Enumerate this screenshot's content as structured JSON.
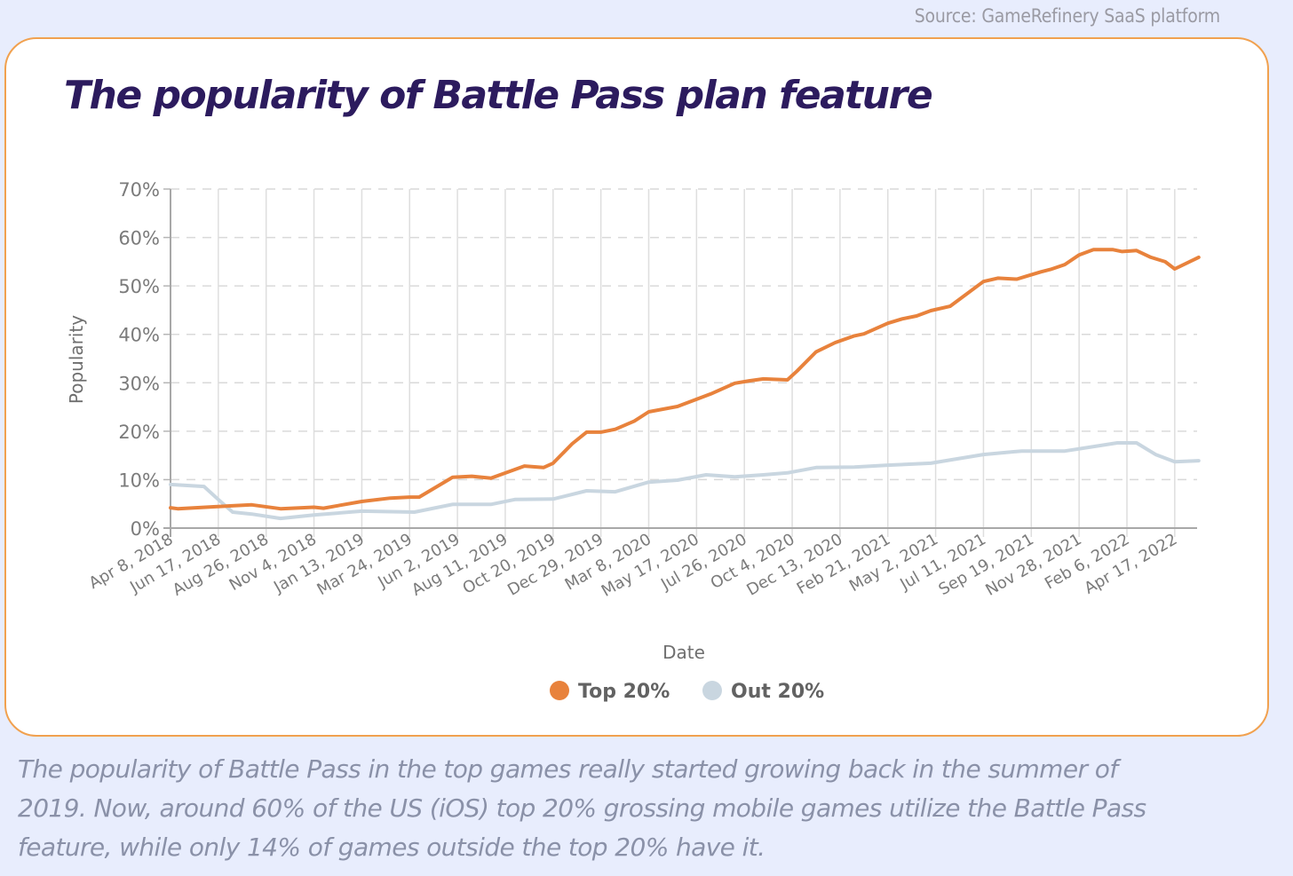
{
  "source": "Source: GameRefinery SaaS platform",
  "caption": "The popularity of Battle Pass in the top games really started growing back in the summer of 2019. Now, around 60% of the US (iOS) top 20% grossing mobile games utilize the Battle Pass feature, while only 14% of games outside the top 20% have it.",
  "chart_data": {
    "type": "line",
    "title": "The popularity of Battle Pass plan feature",
    "xlabel": "Date",
    "ylabel": "Popularity",
    "ylim": [
      0,
      70
    ],
    "yticks": [
      0,
      10,
      20,
      30,
      40,
      50,
      60,
      70
    ],
    "ytick_labels": [
      "0%",
      "10%",
      "20%",
      "30%",
      "40%",
      "50%",
      "60%",
      "70%"
    ],
    "x_unit": "weeks since Apr 8, 2018",
    "xlim": [
      0,
      215
    ],
    "xtick_weeks": [
      0,
      10,
      20,
      30,
      40,
      50,
      60,
      70,
      80,
      90,
      100,
      110,
      120,
      130,
      140,
      150,
      160,
      170,
      180,
      190,
      200,
      210
    ],
    "xtick_labels": [
      "Apr 8, 2018",
      "Jun 17, 2018",
      "Aug 26, 2018",
      "Nov 4, 2018",
      "Jan 13, 2019",
      "Mar 24, 2019",
      "Jun 2, 2019",
      "Aug 11, 2019",
      "Oct 20, 2019",
      "Dec 29, 2019",
      "Mar 8, 2020",
      "May 17, 2020",
      "Jul 26, 2020",
      "Oct 4, 2020",
      "Dec 13, 2020",
      "Feb 21, 2021",
      "May 2, 2021",
      "Jul 11, 2021",
      "Sep 19, 2021",
      "Nov 28, 2021",
      "Feb 6, 2022",
      "Apr 17, 2022"
    ],
    "grid": {
      "horizontal": "dashed",
      "vertical": "solid"
    },
    "legend_position": "bottom-center",
    "series": [
      {
        "name": "Top 20%",
        "color": "#e8823c",
        "x": [
          0,
          1.5,
          9,
          17,
          23,
          30,
          32,
          40,
          46,
          50,
          52,
          59,
          63,
          67,
          74,
          78,
          80,
          84,
          87,
          90,
          93,
          97,
          100,
          106,
          113,
          118,
          121,
          124,
          129,
          131,
          135,
          139,
          143,
          145,
          150,
          153,
          156,
          159,
          163,
          170,
          173,
          177,
          179,
          182,
          184,
          187,
          190,
          193,
          197,
          199,
          202,
          205,
          208,
          210,
          215
        ],
        "values": [
          4.2,
          4.0,
          4.4,
          4.8,
          4.0,
          4.3,
          4.1,
          5.5,
          6.2,
          6.4,
          6.4,
          10.5,
          10.7,
          10.3,
          12.8,
          12.5,
          13.4,
          17.4,
          19.8,
          19.8,
          20.4,
          22.1,
          24.0,
          25.1,
          27.7,
          29.9,
          30.4,
          30.8,
          30.6,
          32.4,
          36.4,
          38.3,
          39.7,
          40.1,
          42.3,
          43.2,
          43.8,
          44.9,
          45.8,
          50.9,
          51.6,
          51.4,
          52.0,
          52.9,
          53.4,
          54.4,
          56.4,
          57.5,
          57.5,
          57.1,
          57.3,
          55.9,
          55.0,
          53.5,
          55.9
        ]
      },
      {
        "name": "Out 20%",
        "color": "#c9d6e0",
        "x": [
          0,
          7,
          10,
          13,
          17,
          23,
          30,
          40,
          51,
          59,
          67,
          72,
          80,
          87,
          93,
          100,
          106,
          112,
          118,
          124,
          129,
          135,
          143,
          150,
          159,
          170,
          178,
          187,
          198,
          202,
          206,
          210,
          215
        ],
        "values": [
          9.0,
          8.6,
          5.9,
          3.3,
          2.9,
          2.0,
          2.7,
          3.5,
          3.3,
          4.9,
          4.9,
          5.9,
          6.0,
          7.7,
          7.5,
          9.5,
          9.9,
          11.0,
          10.6,
          11.0,
          11.4,
          12.5,
          12.6,
          13.0,
          13.4,
          15.2,
          15.9,
          15.9,
          17.6,
          17.6,
          15.2,
          13.7,
          13.9
        ]
      }
    ]
  }
}
